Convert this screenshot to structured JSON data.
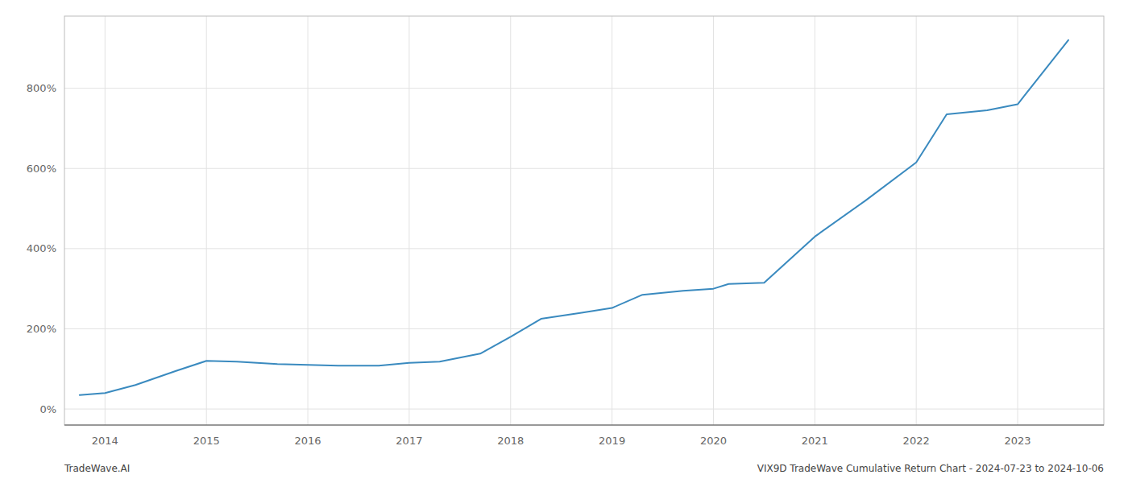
{
  "chart_data": {
    "type": "line",
    "x": [
      2013.75,
      2014.0,
      2014.3,
      2014.7,
      2015.0,
      2015.3,
      2015.7,
      2016.0,
      2016.3,
      2016.7,
      2017.0,
      2017.3,
      2017.7,
      2018.0,
      2018.3,
      2018.7,
      2019.0,
      2019.3,
      2019.7,
      2020.0,
      2020.15,
      2020.5,
      2021.0,
      2021.5,
      2022.0,
      2022.3,
      2022.7,
      2023.0,
      2023.5
    ],
    "values": [
      35,
      40,
      60,
      95,
      120,
      118,
      112,
      110,
      108,
      108,
      115,
      118,
      138,
      180,
      225,
      240,
      252,
      285,
      295,
      300,
      312,
      315,
      430,
      520,
      615,
      735,
      745,
      760,
      920
    ],
    "color": "#3a8abf",
    "xlim": [
      2013.6,
      2023.85
    ],
    "xticks": [
      2014,
      2015,
      2016,
      2017,
      2018,
      2019,
      2020,
      2021,
      2022,
      2023
    ],
    "ylim": [
      -40,
      980
    ],
    "yticks": [
      {
        "value": 0,
        "label": "0%"
      },
      {
        "value": 200,
        "label": "200%"
      },
      {
        "value": 400,
        "label": "400%"
      },
      {
        "value": 600,
        "label": "600%"
      },
      {
        "value": 800,
        "label": "800%"
      }
    ],
    "grid": true,
    "annotations": [
      "TradeWave.AI",
      "VIX9D TradeWave Cumulative Return Chart - 2024-07-23 to 2024-10-06"
    ]
  }
}
